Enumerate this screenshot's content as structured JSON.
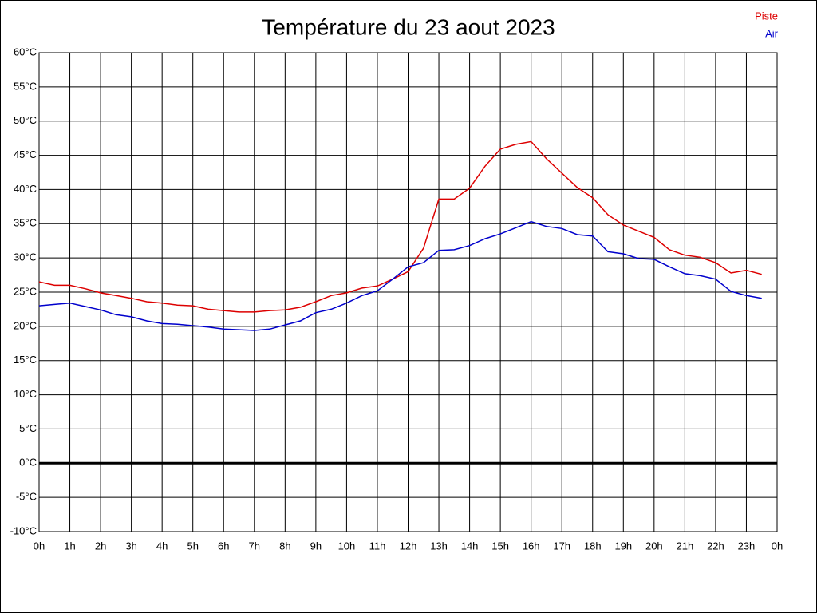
{
  "chart_data": {
    "type": "line",
    "title": "Température du 23 aout 2023",
    "x": [
      0,
      0.5,
      1,
      1.5,
      2,
      2.5,
      3,
      3.5,
      4,
      4.5,
      5,
      5.5,
      6,
      6.5,
      7,
      7.5,
      8,
      8.5,
      9,
      9.5,
      10,
      10.5,
      11,
      11.5,
      12,
      12.5,
      13,
      13.5,
      14,
      14.5,
      15,
      15.5,
      16,
      16.5,
      17,
      17.5,
      18,
      18.5,
      19,
      19.5,
      20,
      20.5,
      21,
      21.5,
      22,
      22.5,
      23,
      23.5
    ],
    "series": [
      {
        "name": "Piste",
        "color": "#dd0000",
        "values": [
          26.5,
          26.0,
          26.0,
          25.5,
          24.9,
          24.5,
          24.1,
          23.6,
          23.4,
          23.1,
          23.0,
          22.5,
          22.3,
          22.1,
          22.1,
          22.3,
          22.4,
          22.8,
          23.6,
          24.5,
          24.9,
          25.6,
          25.9,
          26.9,
          28.0,
          31.4,
          38.6,
          38.6,
          40.2,
          43.4,
          45.9,
          46.6,
          47.0,
          44.5,
          42.4,
          40.3,
          38.8,
          36.3,
          34.8,
          33.9,
          33.0,
          31.2,
          30.4,
          30.1,
          29.3,
          27.8,
          28.2,
          27.6
        ]
      },
      {
        "name": "Air",
        "color": "#0000cc",
        "values": [
          23.0,
          23.2,
          23.4,
          22.9,
          22.4,
          21.7,
          21.4,
          20.8,
          20.4,
          20.3,
          20.1,
          19.9,
          19.6,
          19.5,
          19.4,
          19.6,
          20.2,
          20.8,
          22.0,
          22.5,
          23.4,
          24.5,
          25.2,
          26.9,
          28.7,
          29.3,
          31.1,
          31.2,
          31.8,
          32.8,
          33.5,
          34.4,
          35.3,
          34.6,
          34.3,
          33.4,
          33.2,
          30.9,
          30.6,
          29.9,
          29.8,
          28.7,
          27.7,
          27.4,
          26.9,
          25.1,
          24.5,
          24.1
        ]
      }
    ],
    "xlim": [
      0,
      24
    ],
    "xticks": [
      {
        "value": 0,
        "label": "0h"
      },
      {
        "value": 1,
        "label": "1h"
      },
      {
        "value": 2,
        "label": "2h"
      },
      {
        "value": 3,
        "label": "3h"
      },
      {
        "value": 4,
        "label": "4h"
      },
      {
        "value": 5,
        "label": "5h"
      },
      {
        "value": 6,
        "label": "6h"
      },
      {
        "value": 7,
        "label": "7h"
      },
      {
        "value": 8,
        "label": "8h"
      },
      {
        "value": 9,
        "label": "9h"
      },
      {
        "value": 10,
        "label": "10h"
      },
      {
        "value": 11,
        "label": "11h"
      },
      {
        "value": 12,
        "label": "12h"
      },
      {
        "value": 13,
        "label": "13h"
      },
      {
        "value": 14,
        "label": "14h"
      },
      {
        "value": 15,
        "label": "15h"
      },
      {
        "value": 16,
        "label": "16h"
      },
      {
        "value": 17,
        "label": "17h"
      },
      {
        "value": 18,
        "label": "18h"
      },
      {
        "value": 19,
        "label": "19h"
      },
      {
        "value": 20,
        "label": "20h"
      },
      {
        "value": 21,
        "label": "21h"
      },
      {
        "value": 22,
        "label": "22h"
      },
      {
        "value": 23,
        "label": "23h"
      },
      {
        "value": 24,
        "label": "0h"
      }
    ],
    "ylim": [
      -10,
      60
    ],
    "yticks": [
      {
        "value": 60,
        "label": "60°C"
      },
      {
        "value": 55,
        "label": "55°C"
      },
      {
        "value": 50,
        "label": "50°C"
      },
      {
        "value": 45,
        "label": "45°C"
      },
      {
        "value": 40,
        "label": "40°C"
      },
      {
        "value": 35,
        "label": "35°C"
      },
      {
        "value": 30,
        "label": "30°C"
      },
      {
        "value": 25,
        "label": "25°C"
      },
      {
        "value": 20,
        "label": "20°C"
      },
      {
        "value": 15,
        "label": "15°C"
      },
      {
        "value": 10,
        "label": "10°C"
      },
      {
        "value": 5,
        "label": "5°C"
      },
      {
        "value": 0,
        "label": "0°C"
      },
      {
        "value": -5,
        "label": "-5°C"
      },
      {
        "value": -10,
        "label": "-10°C"
      }
    ],
    "grid": true,
    "legend": "top-right"
  }
}
